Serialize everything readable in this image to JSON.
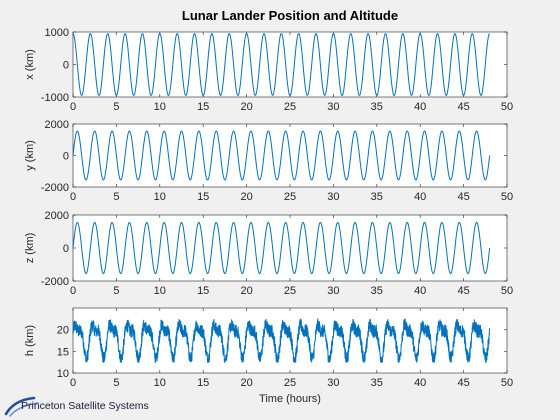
{
  "figure": {
    "logo_text": "Princeton Satellite Systems",
    "line_color": "#0072bd",
    "background": "#f0f0f0"
  },
  "chart_data": [
    {
      "type": "line",
      "title": "Lunar Lander Position and Altitude",
      "xlabel": "",
      "ylabel": "x (km)",
      "xlim": [
        0,
        50
      ],
      "ylim": [
        -1000,
        1000
      ],
      "xticks": [
        "0",
        "5",
        "10",
        "15",
        "20",
        "25",
        "30",
        "35",
        "40",
        "45",
        "50"
      ],
      "yticks": [
        "-1000",
        "0",
        "1000"
      ],
      "series": [
        {
          "amplitude": 950,
          "period_hours": 2.0,
          "phase_cycles": 0.0,
          "t_end": 48
        }
      ]
    },
    {
      "type": "line",
      "title": "",
      "xlabel": "",
      "ylabel": "y (km)",
      "xlim": [
        0,
        50
      ],
      "ylim": [
        -2000,
        2000
      ],
      "xticks": [
        "0",
        "5",
        "10",
        "15",
        "20",
        "25",
        "30",
        "35",
        "40",
        "45",
        "50"
      ],
      "yticks": [
        "-2000",
        "0",
        "2000"
      ],
      "series": [
        {
          "amplitude": 1550,
          "period_hours": 2.0,
          "phase_cycles": 0.75,
          "t_end": 48
        }
      ]
    },
    {
      "type": "line",
      "title": "",
      "xlabel": "",
      "ylabel": "z (km)",
      "xlim": [
        0,
        50
      ],
      "ylim": [
        -2000,
        2000
      ],
      "xticks": [
        "0",
        "5",
        "10",
        "15",
        "20",
        "25",
        "30",
        "35",
        "40",
        "45",
        "50"
      ],
      "yticks": [
        "-2000",
        "0",
        "2000"
      ],
      "series": [
        {
          "amplitude": 1550,
          "period_hours": 2.0,
          "phase_cycles": 0.75,
          "t_end": 48
        }
      ]
    },
    {
      "type": "line",
      "title": "",
      "xlabel": "Time (hours)",
      "ylabel": "h (km)",
      "xlim": [
        0,
        50
      ],
      "ylim": [
        10,
        25
      ],
      "xticks": [
        "0",
        "5",
        "10",
        "15",
        "20",
        "25",
        "30",
        "35",
        "40",
        "45",
        "50"
      ],
      "yticks": [
        "10",
        "15",
        "20"
      ],
      "series": [
        {
          "mean": 18,
          "swing": 6,
          "noise": 1.5,
          "min": 12.5,
          "max": 23.5,
          "period_hours": 2.0,
          "t_end": 48
        }
      ]
    }
  ]
}
